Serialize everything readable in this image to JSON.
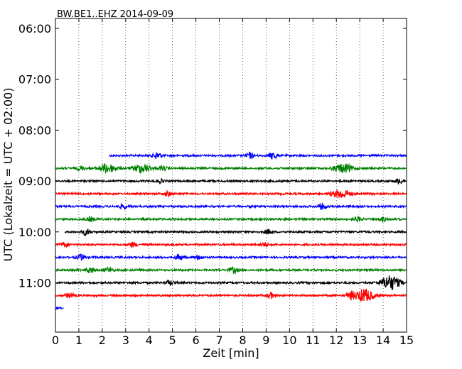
{
  "chart_data": {
    "type": "line",
    "title": "BW.BE1..EHZ 2014-09-09",
    "xlabel": "Zeit  [min]",
    "ylabel": "UTC (Lokalzeit = UTC + 02:00)",
    "xlim": [
      0,
      15
    ],
    "x_ticks": [
      "0",
      "1",
      "2",
      "3",
      "4",
      "5",
      "6",
      "7",
      "8",
      "9",
      "10",
      "11",
      "12",
      "13",
      "14",
      "15"
    ],
    "y_ticks": [
      "06:00",
      "07:00",
      "08:00",
      "09:00",
      "10:00",
      "11:00"
    ],
    "grid": "vertical dotted",
    "series": [
      {
        "start": "08:30",
        "x_start": 2.3,
        "x_end": 15,
        "color": "#0000ff",
        "events": [
          [
            4.35,
            5
          ],
          [
            8.3,
            4
          ],
          [
            9.3,
            5
          ]
        ]
      },
      {
        "start": "08:45",
        "x_start": 0,
        "x_end": 15,
        "color": "#008000",
        "events": [
          [
            2.2,
            6
          ],
          [
            3.7,
            6
          ],
          [
            12.3,
            6
          ],
          [
            1.1,
            3
          ],
          [
            4.6,
            3
          ]
        ]
      },
      {
        "start": "09:00",
        "x_start": 0,
        "x_end": 15,
        "color": "#000000",
        "events": [
          [
            14.7,
            4
          ],
          [
            4.5,
            2
          ]
        ]
      },
      {
        "start": "09:15",
        "x_start": 0,
        "x_end": 15,
        "color": "#ff0000",
        "events": [
          [
            12.2,
            6
          ],
          [
            4.8,
            3
          ]
        ]
      },
      {
        "start": "09:30",
        "x_start": 0,
        "x_end": 15,
        "color": "#0000ff",
        "events": [
          [
            2.9,
            3
          ],
          [
            11.4,
            4
          ]
        ]
      },
      {
        "start": "09:45",
        "x_start": 0,
        "x_end": 15,
        "color": "#008000",
        "events": [
          [
            1.5,
            3
          ],
          [
            12.9,
            3
          ],
          [
            14.0,
            3
          ]
        ]
      },
      {
        "start": "10:00",
        "x_start": 0.4,
        "x_end": 15,
        "color": "#000000",
        "events": [
          [
            1.3,
            4
          ],
          [
            9.1,
            3
          ]
        ]
      },
      {
        "start": "10:15",
        "x_start": 0,
        "x_end": 15,
        "color": "#ff0000",
        "events": [
          [
            0.4,
            3
          ],
          [
            3.3,
            3
          ],
          [
            8.9,
            3
          ]
        ]
      },
      {
        "start": "10:30",
        "x_start": 0,
        "x_end": 15,
        "color": "#0000ff",
        "events": [
          [
            1.1,
            4
          ],
          [
            5.3,
            4
          ],
          [
            6.1,
            3
          ]
        ]
      },
      {
        "start": "10:45",
        "x_start": 0,
        "x_end": 15,
        "color": "#008000",
        "events": [
          [
            1.5,
            4
          ],
          [
            7.6,
            4
          ],
          [
            2.3,
            3
          ]
        ]
      },
      {
        "start": "11:00",
        "x_start": 0,
        "x_end": 15,
        "color": "#000000",
        "events": [
          [
            14.3,
            10
          ],
          [
            4.9,
            3
          ]
        ]
      },
      {
        "start": "11:15",
        "x_start": 0,
        "x_end": 15,
        "color": "#ff0000",
        "events": [
          [
            13.2,
            9
          ],
          [
            9.2,
            4
          ],
          [
            12.6,
            5
          ],
          [
            0.6,
            3
          ]
        ]
      },
      {
        "start": "11:30",
        "x_start": 0,
        "x_end": 0.35,
        "color": "#0000ff",
        "events": []
      }
    ]
  }
}
